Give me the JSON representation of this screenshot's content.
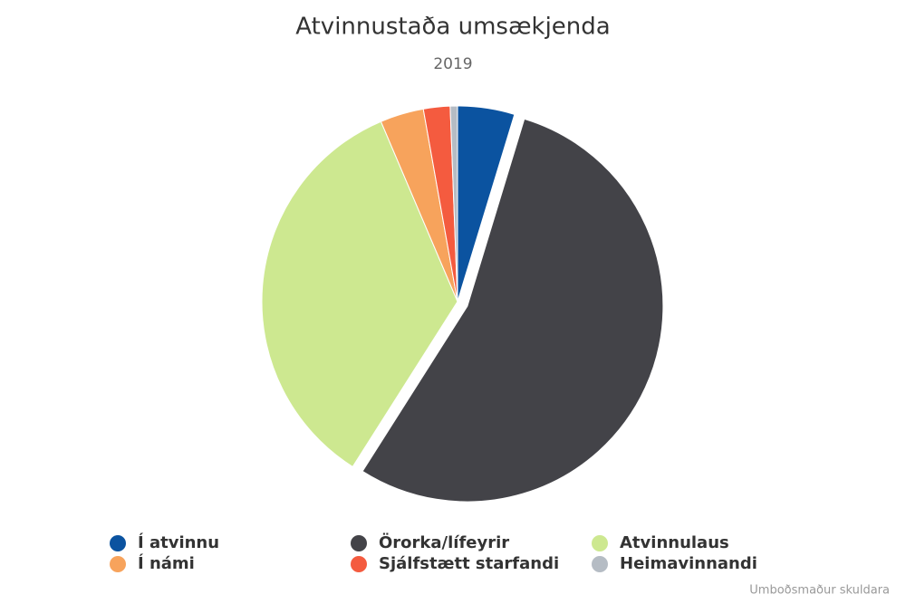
{
  "chart_data": {
    "type": "pie",
    "title": "Atvinnustaða umsækjenda",
    "subtitle": "2019",
    "categories": [
      "Í atvinnu",
      "Örorka/lífeyrir",
      "Atvinnulaus",
      "Í námi",
      "Sjálfstætt starfandi",
      "Heimavinnandi"
    ],
    "values": [
      4.7,
      54.3,
      34.6,
      3.6,
      2.2,
      0.6
    ],
    "colors": [
      "#0b53a0",
      "#434348",
      "#cde890",
      "#f7a35c",
      "#f45b3f",
      "#b5bcc4"
    ],
    "sliced": [
      false,
      true,
      false,
      false,
      false,
      false
    ],
    "credits": "Umboðsmaður skuldara"
  }
}
